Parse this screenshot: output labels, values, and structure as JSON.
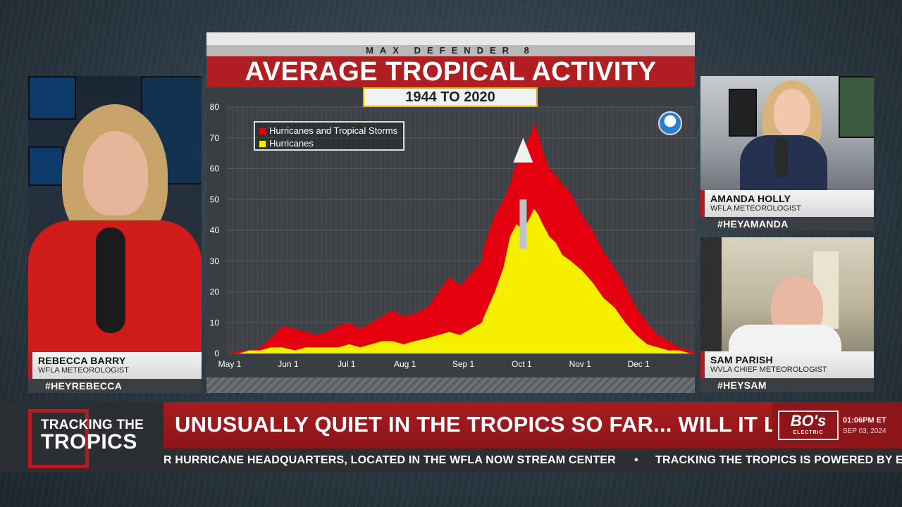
{
  "graphic": {
    "brand": "MAX DEFENDER 8",
    "title": "AVERAGE TROPICAL ACTIVITY",
    "subtitle": "1944 TO 2020"
  },
  "chart_data": {
    "type": "area",
    "title": "AVERAGE TROPICAL ACTIVITY",
    "subtitle": "1944 TO 2020",
    "xlabel": "",
    "ylabel": "",
    "ylim": [
      0,
      80
    ],
    "yticks": [
      "0",
      "10",
      "20",
      "30",
      "40",
      "50",
      "60",
      "70",
      "80"
    ],
    "xtick_labels": [
      "May 1",
      "Jun 1",
      "Jul 1",
      "Aug 1",
      "Sep 1",
      "Oct 1",
      "Nov 1",
      "Dec 1"
    ],
    "x_domain": [
      0,
      215
    ],
    "grid": true,
    "legend_position": "top-left",
    "series": [
      {
        "name": "Hurricanes and Tropical Storms",
        "color": "#e4000f",
        "x": [
          0,
          5,
          10,
          15,
          20,
          25,
          31,
          36,
          41,
          46,
          51,
          56,
          61,
          66,
          71,
          76,
          81,
          86,
          92,
          97,
          102,
          107,
          112,
          117,
          118,
          123,
          127,
          130,
          133,
          136,
          139,
          141,
          143,
          145,
          148,
          151,
          154,
          158,
          163,
          168,
          173,
          178,
          183,
          188,
          193,
          198,
          203,
          208,
          213,
          215
        ],
        "y": [
          0,
          1,
          1,
          2,
          5,
          9,
          8,
          7,
          6,
          7,
          9,
          10,
          8,
          10,
          12,
          14,
          12,
          13,
          15,
          20,
          25,
          22,
          26,
          30,
          35,
          45,
          50,
          55,
          62,
          67,
          70,
          75,
          71,
          66,
          60,
          58,
          55,
          52,
          45,
          40,
          33,
          28,
          22,
          15,
          10,
          6,
          4,
          2,
          1,
          1
        ]
      },
      {
        "name": "Hurricanes",
        "color": "#f5f000",
        "x": [
          0,
          5,
          10,
          15,
          20,
          25,
          31,
          36,
          41,
          46,
          51,
          56,
          61,
          66,
          71,
          76,
          81,
          86,
          92,
          97,
          102,
          107,
          112,
          117,
          118,
          123,
          127,
          130,
          133,
          136,
          139,
          141,
          143,
          145,
          148,
          151,
          154,
          158,
          163,
          168,
          173,
          178,
          183,
          188,
          193,
          198,
          203,
          208,
          213,
          215
        ],
        "y": [
          0,
          0,
          1,
          1,
          2,
          2,
          1,
          2,
          2,
          2,
          2,
          3,
          2,
          3,
          4,
          4,
          3,
          4,
          5,
          6,
          7,
          6,
          8,
          10,
          12,
          20,
          28,
          38,
          42,
          40,
          44,
          47,
          45,
          42,
          38,
          36,
          32,
          30,
          27,
          23,
          18,
          15,
          10,
          6,
          3,
          2,
          1,
          1,
          0,
          0
        ]
      }
    ],
    "annotation": "arrow pointing up at season peak (~Sep 10)"
  },
  "panels": {
    "left": {
      "name": "REBECCA BARRY",
      "title": "WFLA METEOROLOGIST",
      "hashtag": "#HEYREBECCA"
    },
    "right_top": {
      "name": "AMANDA HOLLY",
      "title": "WFLA METEOROLOGIST",
      "hashtag": "#HEYAMANDA"
    },
    "right_bottom": {
      "name": "SAM PARISH",
      "title": "WVLA CHIEF METEOROLOGIST",
      "hashtag": "#HEYSAM"
    }
  },
  "banner": {
    "logo_line1": "TRACKING THE",
    "logo_line2": "TROPICS",
    "headline": "UNUSUALLY QUIET IN THE TROPICS SO FAR... WILL IT LAST?",
    "sponsor": "BO's",
    "sponsor_small": "ELECTRIC",
    "time": "01:06PM ET",
    "date": "SEP 03, 2024",
    "ticker": [
      "R HURRICANE HEADQUARTERS, LOCATED IN THE WFLA NOW STREAM CENTER",
      "TRACKING THE TROPICS IS POWERED BY E"
    ]
  },
  "colors": {
    "brand_red": "#b11e22",
    "storms_red": "#e4000f",
    "hurricanes_yellow": "#f5f000"
  }
}
